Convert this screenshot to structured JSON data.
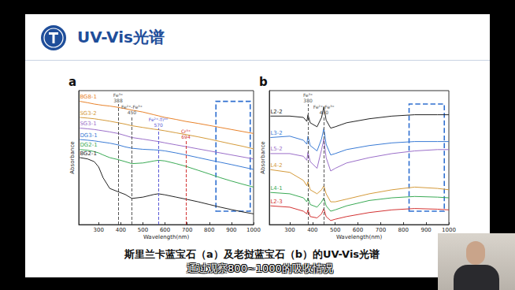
{
  "slide": {
    "title": "UV-Vis光谱",
    "caption": "斯里兰卡蓝宝石（a）及老挝蓝宝石（b）的UV-Vis光谱",
    "subtitle": "通过观察800~1000的吸收情况"
  },
  "chart_data": [
    {
      "type": "line",
      "title": "a",
      "x_label": "Wavelength(nm)",
      "y_label": "Absorbance",
      "xlim": [
        210,
        1000
      ],
      "xticks": [
        300,
        400,
        500,
        600,
        700,
        800,
        900,
        1000
      ],
      "ylim": [
        0,
        10
      ],
      "tick_labels": "x",
      "grid": false,
      "x": [
        215,
        250,
        280,
        300,
        320,
        350,
        388,
        420,
        450,
        500,
        550,
        570,
        600,
        650,
        694,
        750,
        800,
        850,
        900,
        950,
        1000
      ],
      "series": [
        {
          "name": "BG8-1",
          "color": "#e8822a",
          "values": [
            9.2,
            9.1,
            9.0,
            8.95,
            8.9,
            8.85,
            8.75,
            8.65,
            8.55,
            8.4,
            8.2,
            8.12,
            8.0,
            7.85,
            7.7,
            7.55,
            7.4,
            7.25,
            7.1,
            6.95,
            6.8
          ]
        },
        {
          "name": "SG3-2",
          "color": "#d49a3a",
          "values": [
            8.0,
            7.95,
            7.9,
            7.85,
            7.8,
            7.72,
            7.6,
            7.5,
            7.38,
            7.25,
            7.12,
            7.08,
            7.0,
            6.85,
            6.72,
            6.55,
            6.38,
            6.2,
            6.02,
            5.85,
            5.65
          ]
        },
        {
          "name": "SG3-1",
          "color": "#9b6fc9",
          "values": [
            7.2,
            7.15,
            7.1,
            7.05,
            7.0,
            6.92,
            6.8,
            6.65,
            6.5,
            6.38,
            6.25,
            6.2,
            6.1,
            5.95,
            5.82,
            5.65,
            5.5,
            5.35,
            5.2,
            5.05,
            4.9
          ]
        },
        {
          "name": "DG3-1",
          "color": "#3a7bd5",
          "values": [
            6.35,
            6.3,
            6.25,
            6.2,
            6.15,
            6.08,
            5.95,
            5.8,
            5.7,
            5.62,
            5.58,
            5.56,
            5.5,
            5.35,
            5.2,
            5.0,
            4.82,
            4.65,
            4.48,
            4.3,
            4.12
          ]
        },
        {
          "name": "DG2-1",
          "color": "#3aaa55",
          "values": [
            5.6,
            5.55,
            5.45,
            5.35,
            5.2,
            5.0,
            4.85,
            4.7,
            4.55,
            4.6,
            4.75,
            4.8,
            4.75,
            4.55,
            4.35,
            4.05,
            3.78,
            3.5,
            3.25,
            3.02,
            2.8
          ]
        },
        {
          "name": "BG2-1",
          "color": "#222222",
          "values": [
            5.0,
            4.9,
            4.7,
            4.3,
            3.5,
            2.7,
            2.45,
            2.25,
            1.95,
            2.05,
            2.25,
            2.3,
            2.22,
            2.05,
            1.9,
            1.7,
            1.5,
            1.3,
            1.12,
            0.95,
            0.8
          ]
        }
      ],
      "annotations": [
        {
          "x": 388,
          "label": "Fe³⁺",
          "color": "#555555"
        },
        {
          "x": 450,
          "label": "Fe²⁺-Fe³⁺",
          "color": "#555555"
        },
        {
          "x": 570,
          "label": "Fe²⁺-Ti⁴⁺",
          "color": "#5a5ad6"
        },
        {
          "x": 694,
          "label": "Cr³⁺",
          "color": "#d33333"
        }
      ],
      "highlight": {
        "x": [
          830,
          985
        ],
        "y": [
          1.0,
          9.2
        ],
        "color": "#2f6fd0"
      }
    },
    {
      "type": "line",
      "title": "b",
      "x_label": "Wavelength(nm)",
      "y_label": "Absorbance",
      "xlim": [
        210,
        1000
      ],
      "xticks": [
        300,
        400,
        500,
        600,
        700,
        800,
        900,
        1000
      ],
      "ylim": [
        0,
        10
      ],
      "tick_labels": "x",
      "grid": false,
      "x": [
        215,
        300,
        360,
        375,
        380,
        390,
        420,
        440,
        450,
        460,
        480,
        500,
        550,
        650,
        750,
        850,
        950,
        1000
      ],
      "series": [
        {
          "name": "L2-2",
          "color": "#222222",
          "values": [
            8.1,
            8.1,
            8.0,
            7.7,
            8.2,
            7.6,
            7.3,
            8.0,
            8.8,
            7.8,
            7.2,
            7.3,
            7.6,
            7.9,
            8.1,
            8.2,
            8.2,
            8.2
          ]
        },
        {
          "name": "L3-2",
          "color": "#3a7bd5",
          "values": [
            6.5,
            6.6,
            6.3,
            6.0,
            6.6,
            5.9,
            5.5,
            6.4,
            7.2,
            6.0,
            5.2,
            5.3,
            5.6,
            5.9,
            6.1,
            6.2,
            6.2,
            6.2
          ]
        },
        {
          "name": "L5-2",
          "color": "#9b6fc9",
          "values": [
            5.3,
            5.3,
            5.1,
            4.8,
            5.4,
            4.7,
            4.2,
            5.6,
            6.4,
            5.0,
            4.0,
            4.2,
            4.6,
            5.0,
            5.3,
            5.5,
            5.6,
            5.6
          ]
        },
        {
          "name": "L4-2",
          "color": "#d49a3a",
          "values": [
            4.1,
            3.9,
            3.3,
            2.9,
            3.2,
            2.6,
            2.3,
            2.6,
            2.9,
            2.3,
            1.7,
            1.7,
            1.9,
            2.3,
            2.6,
            2.8,
            2.7,
            2.6
          ]
        },
        {
          "name": "L4-1",
          "color": "#3aaa55",
          "values": [
            2.4,
            2.3,
            2.0,
            1.7,
            2.0,
            1.5,
            1.3,
            1.7,
            2.0,
            1.4,
            1.0,
            1.1,
            1.4,
            1.8,
            2.0,
            2.1,
            2.05,
            2.0
          ]
        },
        {
          "name": "L2-3",
          "color": "#d33333",
          "values": [
            1.4,
            1.3,
            1.0,
            0.8,
            1.1,
            0.6,
            0.5,
            0.8,
            1.2,
            0.6,
            0.3,
            0.4,
            0.6,
            0.9,
            1.1,
            1.2,
            1.15,
            1.1
          ]
        }
      ],
      "annotations": [
        {
          "x": 380,
          "label": "Fe³⁺",
          "color": "#555555"
        },
        {
          "x": 450,
          "label": "Fe²⁺-Fe³⁺",
          "color": "#555555"
        }
      ],
      "highlight": {
        "x": [
          825,
          980
        ],
        "y": [
          1.0,
          9.0
        ],
        "color": "#2f6fd0"
      }
    }
  ]
}
